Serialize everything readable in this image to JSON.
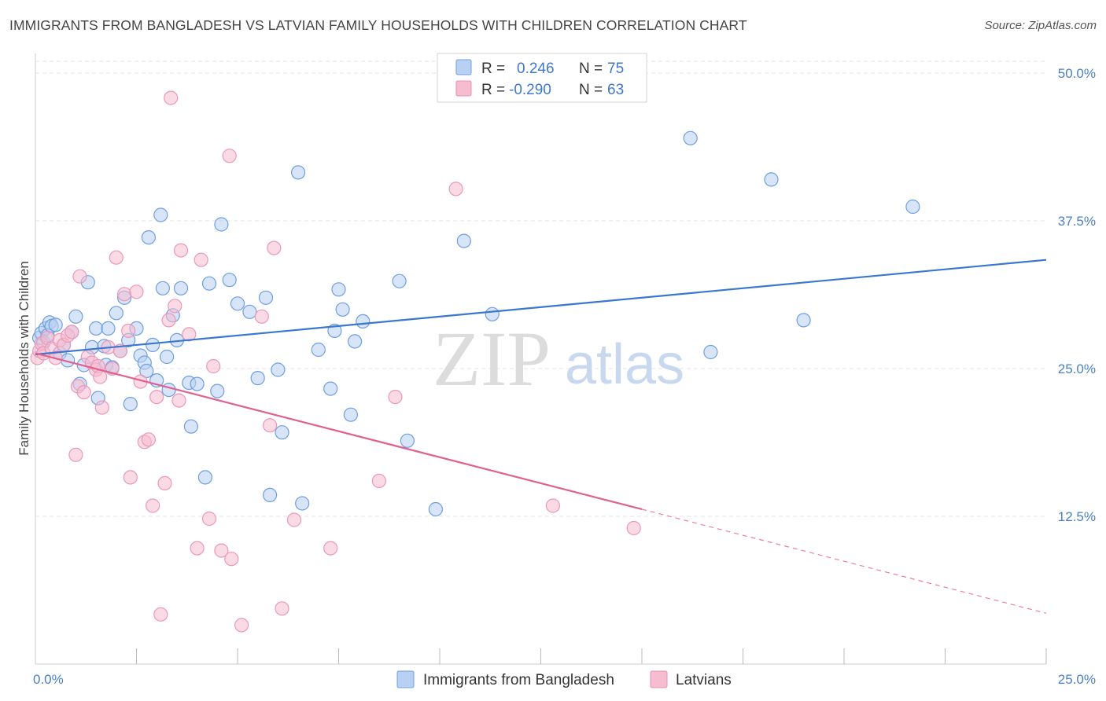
{
  "title": "IMMIGRANTS FROM BANGLADESH VS LATVIAN FAMILY HOUSEHOLDS WITH CHILDREN CORRELATION CHART",
  "source": "Source: ZipAtlas.com",
  "watermark": {
    "zip": "ZIP",
    "atlas": "atlas"
  },
  "stats": [
    {
      "r_label": "R =",
      "r_value": "0.246",
      "n_label": "N =",
      "n_value": "75"
    },
    {
      "r_label": "R =",
      "r_value": "-0.290",
      "n_label": "N =",
      "n_value": "63"
    }
  ],
  "colors": {
    "blue": "#3a78d0",
    "blue_fill": "#b8d0f2",
    "pink": "#e0608f",
    "pink_fill": "#f6bcd0",
    "grid": "#e3e3e3"
  },
  "chart_data": {
    "type": "scatter",
    "xlabel": "",
    "ylabel": "Family Households with Children",
    "xlim": [
      0,
      25
    ],
    "ylim": [
      0,
      51
    ],
    "x_tick_labels": [
      {
        "v": 0,
        "label": "0.0%"
      },
      {
        "v": 25,
        "label": "25.0%"
      }
    ],
    "y_tick_labels": [
      {
        "v": 12.5,
        "label": "12.5%"
      },
      {
        "v": 25,
        "label": "25.0%"
      },
      {
        "v": 37.5,
        "label": "37.5%"
      },
      {
        "v": 50,
        "label": "50.0%"
      }
    ],
    "legend_placement": "bottom-center",
    "grid": true,
    "series": [
      {
        "name": "Immigrants from Bangladesh",
        "color": "#3a78d0",
        "trend": {
          "x": [
            0,
            25
          ],
          "y": [
            26.2,
            34.2
          ],
          "dashed_from": null
        },
        "points": [
          [
            0.1,
            27.6
          ],
          [
            0.15,
            28.0
          ],
          [
            0.2,
            27.2
          ],
          [
            0.25,
            28.4
          ],
          [
            0.3,
            27.8
          ],
          [
            0.35,
            28.9
          ],
          [
            0.4,
            28.6
          ],
          [
            0.5,
            28.7
          ],
          [
            0.6,
            26.3
          ],
          [
            0.7,
            27.0
          ],
          [
            0.8,
            25.7
          ],
          [
            0.9,
            28.1
          ],
          [
            1.0,
            29.4
          ],
          [
            1.1,
            23.7
          ],
          [
            1.2,
            25.3
          ],
          [
            1.3,
            32.3
          ],
          [
            1.4,
            26.8
          ],
          [
            1.5,
            28.4
          ],
          [
            1.55,
            22.5
          ],
          [
            1.7,
            26.9
          ],
          [
            1.75,
            25.3
          ],
          [
            1.8,
            28.4
          ],
          [
            1.9,
            25.1
          ],
          [
            2.0,
            29.7
          ],
          [
            2.1,
            26.5
          ],
          [
            2.2,
            31.0
          ],
          [
            2.3,
            27.4
          ],
          [
            2.35,
            22.0
          ],
          [
            2.5,
            28.4
          ],
          [
            2.6,
            26.1
          ],
          [
            2.7,
            25.5
          ],
          [
            2.75,
            24.8
          ],
          [
            2.8,
            36.1
          ],
          [
            2.9,
            27.0
          ],
          [
            3.0,
            24.0
          ],
          [
            3.1,
            38.0
          ],
          [
            3.15,
            31.8
          ],
          [
            3.25,
            26.0
          ],
          [
            3.3,
            23.2
          ],
          [
            3.4,
            29.5
          ],
          [
            3.5,
            27.4
          ],
          [
            3.6,
            31.8
          ],
          [
            3.8,
            23.8
          ],
          [
            3.85,
            20.1
          ],
          [
            4.0,
            23.7
          ],
          [
            4.2,
            15.8
          ],
          [
            4.3,
            32.2
          ],
          [
            4.5,
            23.1
          ],
          [
            4.6,
            37.2
          ],
          [
            4.8,
            32.5
          ],
          [
            5.0,
            30.5
          ],
          [
            5.3,
            29.8
          ],
          [
            5.5,
            24.2
          ],
          [
            5.7,
            31.0
          ],
          [
            5.8,
            14.3
          ],
          [
            6.0,
            24.9
          ],
          [
            6.1,
            19.6
          ],
          [
            6.5,
            41.6
          ],
          [
            6.6,
            13.6
          ],
          [
            7.0,
            26.6
          ],
          [
            7.3,
            23.3
          ],
          [
            7.4,
            28.2
          ],
          [
            7.5,
            31.7
          ],
          [
            7.6,
            30.0
          ],
          [
            7.8,
            21.1
          ],
          [
            7.9,
            27.3
          ],
          [
            8.1,
            29.0
          ],
          [
            9.0,
            32.4
          ],
          [
            9.2,
            18.9
          ],
          [
            9.9,
            13.1
          ],
          [
            10.6,
            35.8
          ],
          [
            11.3,
            29.6
          ],
          [
            16.2,
            44.5
          ],
          [
            16.7,
            26.4
          ],
          [
            18.2,
            41.0
          ],
          [
            19.0,
            29.1
          ],
          [
            21.7,
            38.7
          ]
        ]
      },
      {
        "name": "Latvians",
        "color": "#e0608f",
        "trend": {
          "x": [
            0,
            25
          ],
          "y": [
            26.3,
            4.3
          ],
          "dashed_from": 15.0
        },
        "points": [
          [
            0.05,
            25.9
          ],
          [
            0.1,
            26.5
          ],
          [
            0.15,
            27.1
          ],
          [
            0.2,
            26.3
          ],
          [
            0.3,
            27.6
          ],
          [
            0.4,
            26.7
          ],
          [
            0.5,
            25.9
          ],
          [
            0.6,
            27.4
          ],
          [
            0.7,
            27.0
          ],
          [
            0.8,
            27.8
          ],
          [
            0.9,
            28.1
          ],
          [
            1.0,
            17.7
          ],
          [
            1.05,
            23.5
          ],
          [
            1.1,
            32.8
          ],
          [
            1.2,
            23.0
          ],
          [
            1.3,
            26.0
          ],
          [
            1.4,
            25.5
          ],
          [
            1.5,
            24.9
          ],
          [
            1.55,
            25.2
          ],
          [
            1.6,
            24.3
          ],
          [
            1.65,
            21.7
          ],
          [
            1.8,
            26.8
          ],
          [
            1.9,
            25.0
          ],
          [
            2.0,
            34.4
          ],
          [
            2.1,
            26.5
          ],
          [
            2.2,
            31.3
          ],
          [
            2.3,
            28.2
          ],
          [
            2.35,
            15.8
          ],
          [
            2.5,
            31.5
          ],
          [
            2.6,
            23.9
          ],
          [
            2.7,
            18.8
          ],
          [
            2.8,
            19.0
          ],
          [
            2.9,
            13.4
          ],
          [
            3.0,
            22.6
          ],
          [
            3.1,
            4.2
          ],
          [
            3.2,
            15.3
          ],
          [
            3.3,
            29.1
          ],
          [
            3.35,
            47.9
          ],
          [
            3.45,
            30.3
          ],
          [
            3.55,
            22.3
          ],
          [
            3.6,
            35.0
          ],
          [
            3.8,
            27.9
          ],
          [
            4.0,
            9.8
          ],
          [
            4.1,
            34.2
          ],
          [
            4.3,
            12.3
          ],
          [
            4.4,
            25.2
          ],
          [
            4.6,
            9.6
          ],
          [
            4.8,
            43.0
          ],
          [
            4.85,
            8.9
          ],
          [
            5.1,
            3.3
          ],
          [
            5.6,
            29.4
          ],
          [
            5.8,
            20.2
          ],
          [
            5.9,
            35.2
          ],
          [
            6.1,
            4.7
          ],
          [
            6.4,
            12.2
          ],
          [
            7.3,
            9.8
          ],
          [
            8.5,
            15.5
          ],
          [
            8.9,
            22.6
          ],
          [
            10.4,
            40.2
          ],
          [
            12.8,
            13.4
          ],
          [
            14.8,
            11.5
          ]
        ]
      }
    ]
  },
  "legend": [
    {
      "label": "Immigrants from Bangladesh"
    },
    {
      "label": "Latvians"
    }
  ]
}
